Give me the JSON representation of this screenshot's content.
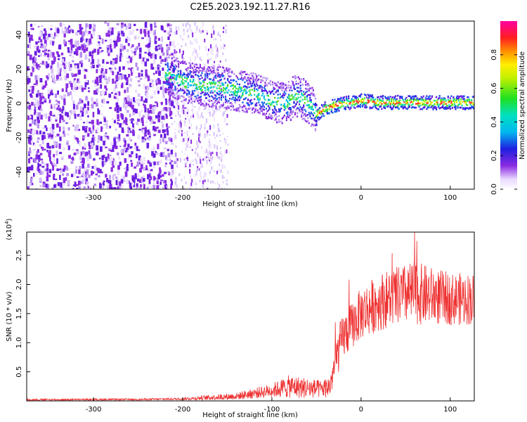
{
  "title": "C2E5.2023.192.11.27.R16",
  "chart_data": [
    {
      "type": "heatmap",
      "xlabel": "Height of straight line (km)",
      "ylabel": "Frequency (Hz)",
      "xlim": [
        -375,
        127
      ],
      "ylim": [
        -50,
        48
      ],
      "x_ticks": [
        -300,
        -200,
        -100,
        0,
        100
      ],
      "x_tick_labels": [
        "-300",
        "-200",
        "-100",
        "0",
        "100"
      ],
      "y_ticks": [
        -40,
        -20,
        0,
        20,
        40
      ],
      "y_tick_labels": [
        "-40",
        "-20",
        "0",
        "20",
        "40"
      ],
      "colorbar": {
        "label": "Normalized spectral amplitude",
        "range": [
          0.0,
          1.0
        ],
        "ticks": [
          0.0,
          0.2,
          0.4,
          0.6,
          0.8
        ],
        "tick_labels": [
          "0.0",
          "0.2",
          "0.4",
          "0.6",
          "0.8"
        ],
        "colormap": "rainbow (white-violet-blue-cyan-green-yellow-red-magenta)"
      },
      "ridge_center_hz": [
        {
          "x": -215,
          "y": 17
        },
        {
          "x": -200,
          "y": 13
        },
        {
          "x": -180,
          "y": 11
        },
        {
          "x": -160,
          "y": 10
        },
        {
          "x": -140,
          "y": 8
        },
        {
          "x": -120,
          "y": 6
        },
        {
          "x": -100,
          "y": 2
        },
        {
          "x": -85,
          "y": 0
        },
        {
          "x": -75,
          "y": 5
        },
        {
          "x": -65,
          "y": 3
        },
        {
          "x": -55,
          "y": -2
        },
        {
          "x": -50,
          "y": -6
        },
        {
          "x": -40,
          "y": -2
        },
        {
          "x": -25,
          "y": 0
        },
        {
          "x": -10,
          "y": 1
        },
        {
          "x": 0,
          "y": 2
        },
        {
          "x": 20,
          "y": 1
        },
        {
          "x": 50,
          "y": 1
        },
        {
          "x": 80,
          "y": 1
        },
        {
          "x": 110,
          "y": 1
        },
        {
          "x": 127,
          "y": 1
        }
      ],
      "grid": false
    },
    {
      "type": "line",
      "xlabel": "Height of straight line (km)",
      "ylabel": "SNR (10 * v/v)",
      "y_scale_label": "(x10",
      "y_scale_exponent": "4",
      "y_scale_suffix": ")",
      "xlim": [
        -375,
        127
      ],
      "ylim": [
        0,
        29000
      ],
      "x_ticks": [
        -300,
        -200,
        -100,
        0,
        100
      ],
      "x_tick_labels": [
        "-300",
        "-200",
        "-100",
        "0",
        "100"
      ],
      "y_ticks": [
        5000,
        10000,
        15000,
        20000,
        25000
      ],
      "y_tick_labels": [
        "0.5",
        "1.0",
        "1.5",
        "2.0",
        "2.5"
      ],
      "color": "#ee3030",
      "envelope": {
        "x": [
          -375,
          -250,
          -200,
          -180,
          -140,
          -120,
          -100,
          -80,
          -60,
          -45,
          -35,
          -25,
          -20,
          -10,
          0,
          20,
          40,
          60,
          80,
          100,
          127
        ],
        "y_mean": [
          200,
          250,
          350,
          500,
          800,
          1300,
          1800,
          2500,
          2200,
          2000,
          2500,
          9000,
          11000,
          13000,
          15000,
          17000,
          18000,
          18500,
          18000,
          17500,
          17500
        ],
        "y_spread": [
          150,
          150,
          200,
          400,
          600,
          900,
          1200,
          2000,
          1800,
          1500,
          2000,
          4000,
          4000,
          4000,
          4500,
          5000,
          5000,
          5500,
          5000,
          4500,
          4500
        ]
      },
      "peak": {
        "x": 60,
        "y": 29000
      },
      "grid": false
    }
  ]
}
